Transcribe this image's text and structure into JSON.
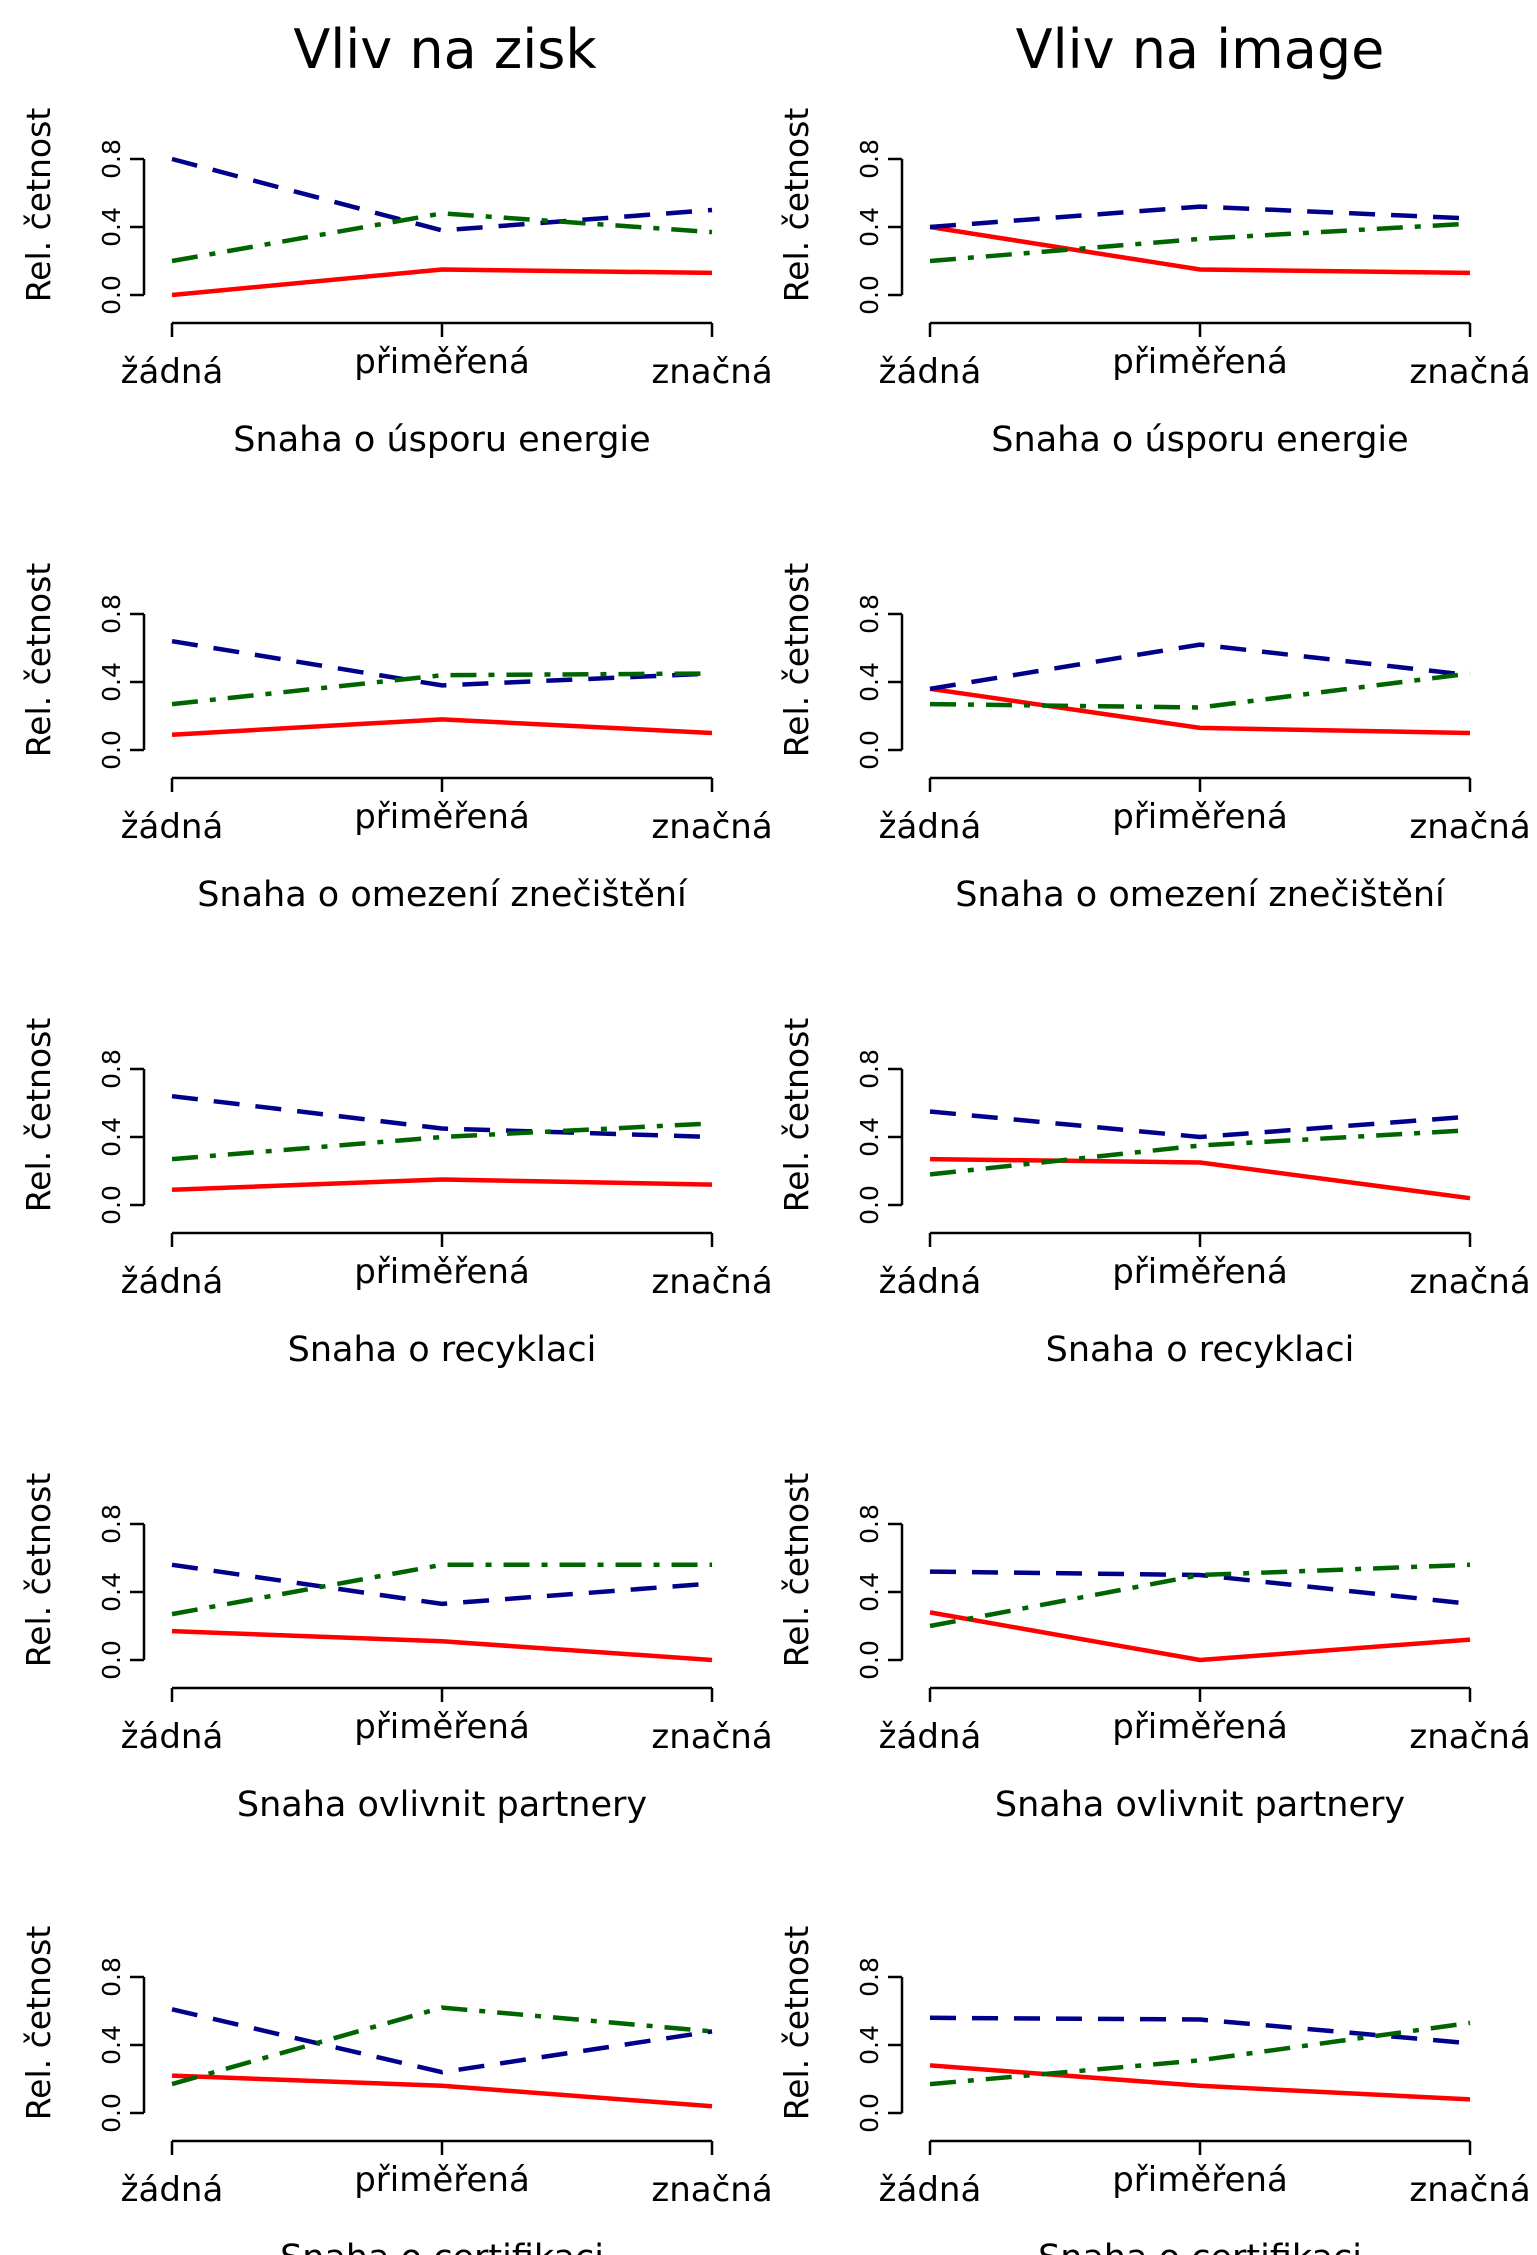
{
  "figure": {
    "column_titles": [
      "Vliv na zisk",
      "Vliv na image"
    ]
  },
  "colors": {
    "red": "#ff0000",
    "blue": "#00008b",
    "green": "#006400"
  },
  "chart_data": [
    {
      "type": "line",
      "column": "Vliv na zisk",
      "xlabel": "Snaha o úsporu energie",
      "ylabel": "Rel. četnost",
      "categories": [
        "žádná",
        "přiměřená",
        "značná"
      ],
      "ylim": [
        0,
        1
      ],
      "yticks": [
        "0.0",
        "0.4",
        "0.8"
      ],
      "yticks_values": [
        0,
        0.4,
        0.8
      ],
      "series": [
        {
          "color": "red",
          "style": "solid",
          "values": [
            0.0,
            0.15,
            0.13
          ]
        },
        {
          "color": "blue",
          "style": "dashed",
          "values": [
            0.8,
            0.38,
            0.5
          ]
        },
        {
          "color": "green",
          "style": "dashdot",
          "values": [
            0.2,
            0.48,
            0.37
          ]
        }
      ]
    },
    {
      "type": "line",
      "column": "Vliv na image",
      "xlabel": "Snaha o úsporu energie",
      "ylabel": "Rel. četnost",
      "categories": [
        "žádná",
        "přiměřená",
        "značná"
      ],
      "ylim": [
        0,
        1
      ],
      "yticks": [
        "0.0",
        "0.4",
        "0.8"
      ],
      "yticks_values": [
        0,
        0.4,
        0.8
      ],
      "series": [
        {
          "color": "red",
          "style": "solid",
          "values": [
            0.4,
            0.15,
            0.13
          ]
        },
        {
          "color": "blue",
          "style": "dashed",
          "values": [
            0.4,
            0.52,
            0.45
          ]
        },
        {
          "color": "green",
          "style": "dashdot",
          "values": [
            0.2,
            0.33,
            0.42
          ]
        }
      ]
    },
    {
      "type": "line",
      "column": "Vliv na zisk",
      "xlabel": "Snaha o omezení znečištění",
      "ylabel": "Rel. četnost",
      "categories": [
        "žádná",
        "přiměřená",
        "značná"
      ],
      "ylim": [
        0,
        1
      ],
      "yticks": [
        "0.0",
        "0.4",
        "0.8"
      ],
      "yticks_values": [
        0,
        0.4,
        0.8
      ],
      "series": [
        {
          "color": "red",
          "style": "solid",
          "values": [
            0.09,
            0.18,
            0.1
          ]
        },
        {
          "color": "blue",
          "style": "dashed",
          "values": [
            0.64,
            0.38,
            0.45
          ]
        },
        {
          "color": "green",
          "style": "dashdot",
          "values": [
            0.27,
            0.44,
            0.45
          ]
        }
      ]
    },
    {
      "type": "line",
      "column": "Vliv na image",
      "xlabel": "Snaha o omezení znečištění",
      "ylabel": "Rel. četnost",
      "categories": [
        "žádná",
        "přiměřená",
        "značná"
      ],
      "ylim": [
        0,
        1
      ],
      "yticks": [
        "0.0",
        "0.4",
        "0.8"
      ],
      "yticks_values": [
        0,
        0.4,
        0.8
      ],
      "series": [
        {
          "color": "red",
          "style": "solid",
          "values": [
            0.36,
            0.13,
            0.1
          ]
        },
        {
          "color": "blue",
          "style": "dashed",
          "values": [
            0.36,
            0.62,
            0.44
          ]
        },
        {
          "color": "green",
          "style": "dashdot",
          "values": [
            0.27,
            0.25,
            0.45
          ]
        }
      ]
    },
    {
      "type": "line",
      "column": "Vliv na zisk",
      "xlabel": "Snaha o recyklaci",
      "ylabel": "Rel. četnost",
      "categories": [
        "žádná",
        "přiměřená",
        "značná"
      ],
      "ylim": [
        0,
        1
      ],
      "yticks": [
        "0.0",
        "0.4",
        "0.8"
      ],
      "yticks_values": [
        0,
        0.4,
        0.8
      ],
      "series": [
        {
          "color": "red",
          "style": "solid",
          "values": [
            0.09,
            0.15,
            0.12
          ]
        },
        {
          "color": "blue",
          "style": "dashed",
          "values": [
            0.64,
            0.45,
            0.4
          ]
        },
        {
          "color": "green",
          "style": "dashdot",
          "values": [
            0.27,
            0.4,
            0.48
          ]
        }
      ]
    },
    {
      "type": "line",
      "column": "Vliv na image",
      "xlabel": "Snaha o recyklaci",
      "ylabel": "Rel. četnost",
      "categories": [
        "žádná",
        "přiměřená",
        "značná"
      ],
      "ylim": [
        0,
        1
      ],
      "yticks": [
        "0.0",
        "0.4",
        "0.8"
      ],
      "yticks_values": [
        0,
        0.4,
        0.8
      ],
      "series": [
        {
          "color": "red",
          "style": "solid",
          "values": [
            0.27,
            0.25,
            0.04
          ]
        },
        {
          "color": "blue",
          "style": "dashed",
          "values": [
            0.55,
            0.4,
            0.52
          ]
        },
        {
          "color": "green",
          "style": "dashdot",
          "values": [
            0.18,
            0.35,
            0.44
          ]
        }
      ]
    },
    {
      "type": "line",
      "column": "Vliv na zisk",
      "xlabel": "Snaha ovlivnit partnery",
      "ylabel": "Rel. četnost",
      "categories": [
        "žádná",
        "přiměřená",
        "značná"
      ],
      "ylim": [
        0,
        1
      ],
      "yticks": [
        "0.0",
        "0.4",
        "0.8"
      ],
      "yticks_values": [
        0,
        0.4,
        0.8
      ],
      "series": [
        {
          "color": "red",
          "style": "solid",
          "values": [
            0.17,
            0.11,
            0.0
          ]
        },
        {
          "color": "blue",
          "style": "dashed",
          "values": [
            0.56,
            0.33,
            0.45
          ]
        },
        {
          "color": "green",
          "style": "dashdot",
          "values": [
            0.27,
            0.56,
            0.56
          ]
        }
      ]
    },
    {
      "type": "line",
      "column": "Vliv na image",
      "xlabel": "Snaha ovlivnit partnery",
      "ylabel": "Rel. četnost",
      "categories": [
        "žádná",
        "přiměřená",
        "značná"
      ],
      "ylim": [
        0,
        1
      ],
      "yticks": [
        "0.0",
        "0.4",
        "0.8"
      ],
      "yticks_values": [
        0,
        0.4,
        0.8
      ],
      "series": [
        {
          "color": "red",
          "style": "solid",
          "values": [
            0.28,
            0.0,
            0.12
          ]
        },
        {
          "color": "blue",
          "style": "dashed",
          "values": [
            0.52,
            0.5,
            0.33
          ]
        },
        {
          "color": "green",
          "style": "dashdot",
          "values": [
            0.2,
            0.5,
            0.56
          ]
        }
      ]
    },
    {
      "type": "line",
      "column": "Vliv na zisk",
      "xlabel": "Snaha o certifikaci",
      "ylabel": "Rel. četnost",
      "categories": [
        "žádná",
        "přiměřená",
        "značná"
      ],
      "ylim": [
        0,
        1
      ],
      "yticks": [
        "0.0",
        "0.4",
        "0.8"
      ],
      "yticks_values": [
        0,
        0.4,
        0.8
      ],
      "series": [
        {
          "color": "red",
          "style": "solid",
          "values": [
            0.22,
            0.16,
            0.04
          ]
        },
        {
          "color": "blue",
          "style": "dashed",
          "values": [
            0.61,
            0.24,
            0.48
          ]
        },
        {
          "color": "green",
          "style": "dashdot",
          "values": [
            0.17,
            0.62,
            0.48
          ]
        }
      ]
    },
    {
      "type": "line",
      "column": "Vliv na image",
      "xlabel": "Snaha o certifikaci",
      "ylabel": "Rel. četnost",
      "categories": [
        "žádná",
        "přiměřená",
        "značná"
      ],
      "ylim": [
        0,
        1
      ],
      "yticks": [
        "0.0",
        "0.4",
        "0.8"
      ],
      "yticks_values": [
        0,
        0.4,
        0.8
      ],
      "series": [
        {
          "color": "red",
          "style": "solid",
          "values": [
            0.28,
            0.16,
            0.08
          ]
        },
        {
          "color": "blue",
          "style": "dashed",
          "values": [
            0.56,
            0.55,
            0.41
          ]
        },
        {
          "color": "green",
          "style": "dashdot",
          "values": [
            0.17,
            0.31,
            0.53
          ]
        }
      ]
    }
  ]
}
